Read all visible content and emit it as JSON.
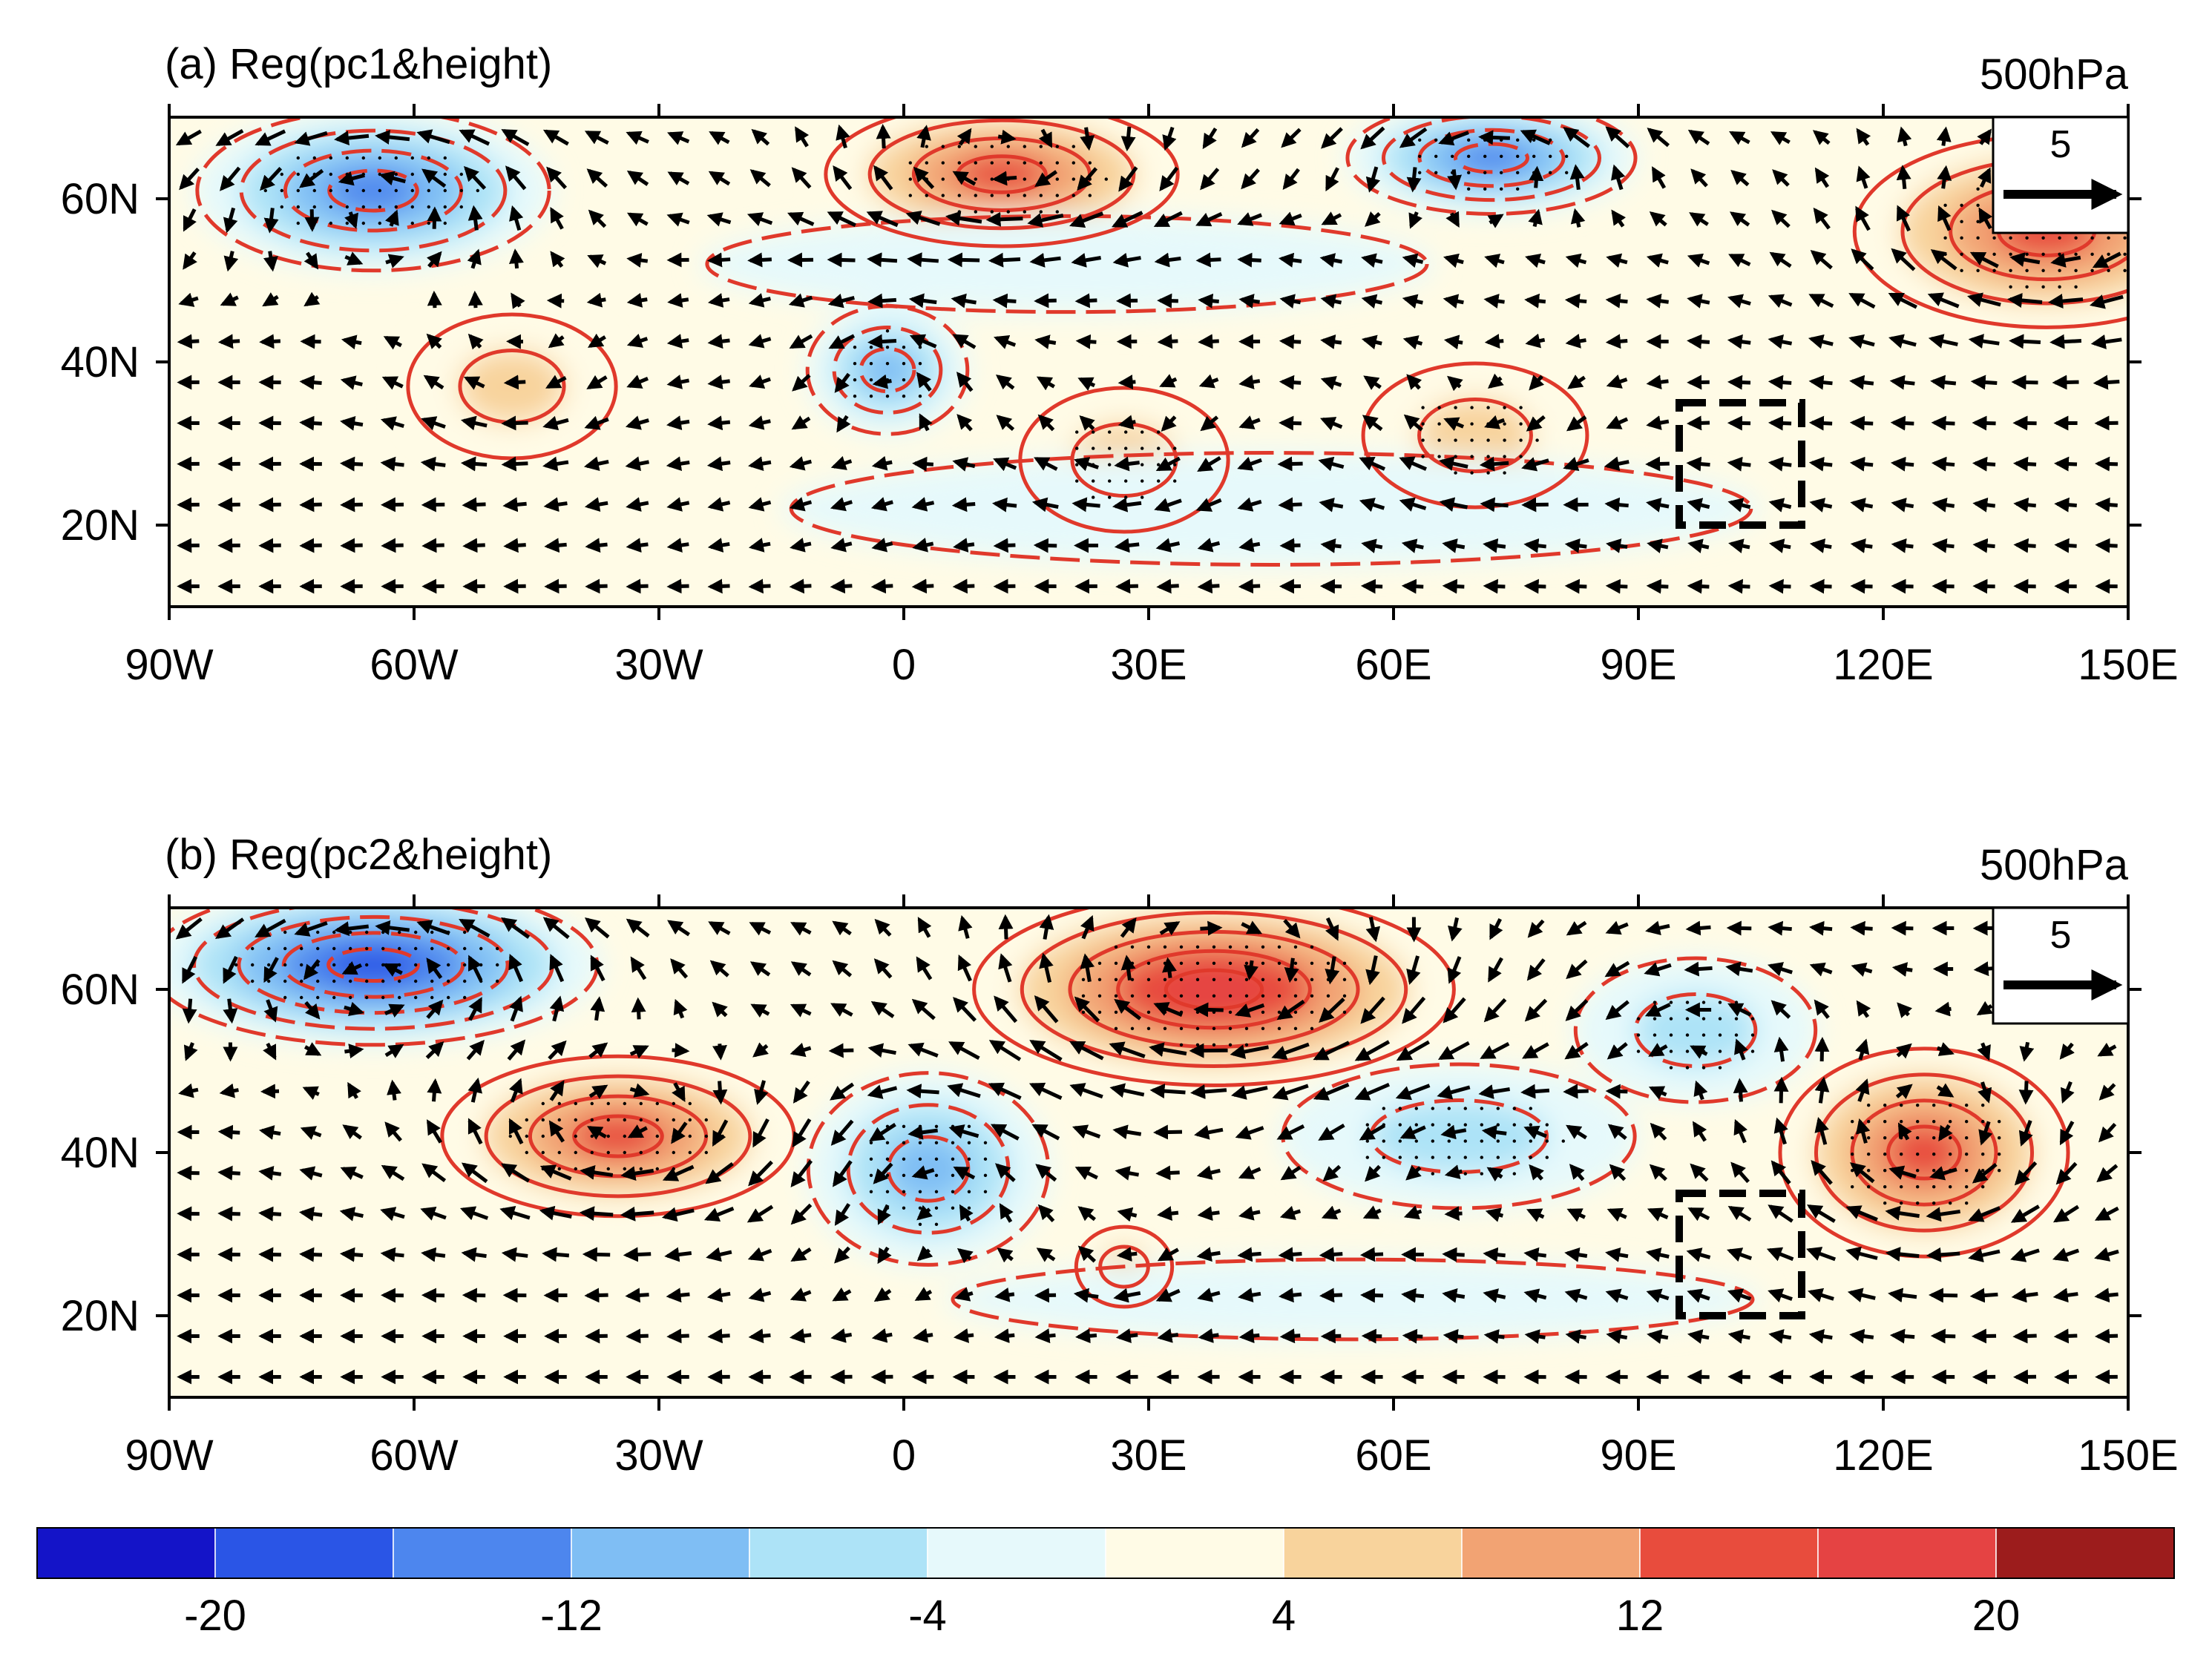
{
  "figure": {
    "panels": [
      {
        "id": "a",
        "title": "(a) Reg(pc1&height)",
        "level": "500hPa",
        "ref_vector": "5",
        "blobs": [
          {
            "lon": -65,
            "lat": 61,
            "rx": 22,
            "ry": 10,
            "value": -16
          },
          {
            "lon": -48,
            "lat": 37,
            "rx": 13,
            "ry": 9,
            "value": 6
          },
          {
            "lon": 12,
            "lat": 63,
            "rx": 22,
            "ry": 9,
            "value": 16
          },
          {
            "lon": -2,
            "lat": 39,
            "rx": 10,
            "ry": 8,
            "value": -10
          },
          {
            "lon": 27,
            "lat": 28,
            "rx": 13,
            "ry": 9,
            "value": 8
          },
          {
            "lon": 72,
            "lat": 65,
            "rx": 18,
            "ry": 7,
            "value": -16
          },
          {
            "lon": 70,
            "lat": 31,
            "rx": 14,
            "ry": 9,
            "value": 8
          },
          {
            "lon": 140,
            "lat": 56,
            "rx": 24,
            "ry": 12,
            "value": 16
          },
          {
            "lon": 45,
            "lat": 22,
            "rx": 60,
            "ry": 7,
            "value": -3
          },
          {
            "lon": 20,
            "lat": 52,
            "rx": 45,
            "ry": 6,
            "value": -3
          }
        ],
        "box": {
          "lon_min": 95,
          "lon_max": 110,
          "lat_min": 20,
          "lat_max": 35
        }
      },
      {
        "id": "b",
        "title": "(b) Reg(pc2&height)",
        "level": "500hPa",
        "ref_vector": "5",
        "blobs": [
          {
            "lon": -65,
            "lat": 63,
            "rx": 28,
            "ry": 10,
            "value": -18
          },
          {
            "lon": -35,
            "lat": 42,
            "rx": 22,
            "ry": 10,
            "value": 16
          },
          {
            "lon": 3,
            "lat": 38,
            "rx": 15,
            "ry": 12,
            "value": -10
          },
          {
            "lon": 38,
            "lat": 60,
            "rx": 30,
            "ry": 12,
            "value": 20
          },
          {
            "lon": 27,
            "lat": 26,
            "rx": 6,
            "ry": 5,
            "value": 6
          },
          {
            "lon": 68,
            "lat": 42,
            "rx": 22,
            "ry": 9,
            "value": -8
          },
          {
            "lon": 97,
            "lat": 55,
            "rx": 15,
            "ry": 9,
            "value": -8
          },
          {
            "lon": 125,
            "lat": 40,
            "rx": 18,
            "ry": 13,
            "value": 16
          },
          {
            "lon": 55,
            "lat": 22,
            "rx": 50,
            "ry": 5,
            "value": -3
          }
        ],
        "box": {
          "lon_min": 95,
          "lon_max": 110,
          "lat_min": 20,
          "lat_max": 35
        }
      }
    ],
    "x_ticks": [
      "90W",
      "60W",
      "30W",
      "0",
      "30E",
      "60E",
      "90E",
      "120E",
      "150E"
    ],
    "x_tick_values": [
      -90,
      -60,
      -30,
      0,
      30,
      60,
      90,
      120,
      150
    ],
    "y_ticks": [
      "20N",
      "40N",
      "60N"
    ],
    "y_tick_values": [
      20,
      40,
      60
    ],
    "lon_range": [
      -90,
      150
    ],
    "lat_range": [
      10,
      70
    ],
    "colorbar": {
      "labels": [
        "-20",
        "-12",
        "-4",
        "4",
        "12",
        "20"
      ],
      "label_values": [
        -20,
        -12,
        -4,
        4,
        12,
        20
      ],
      "levels": [
        -24,
        -20,
        -16,
        -12,
        -8,
        -4,
        0,
        4,
        8,
        12,
        16,
        20,
        24
      ],
      "colors": [
        "#1414c8",
        "#2a55e6",
        "#4d86ee",
        "#7fbef4",
        "#ade3f7",
        "#e6f9fb",
        "#fffbe6",
        "#f8d39c",
        "#f2a373",
        "#e84c3d",
        "#e54343",
        "#9c1c1c"
      ]
    }
  }
}
